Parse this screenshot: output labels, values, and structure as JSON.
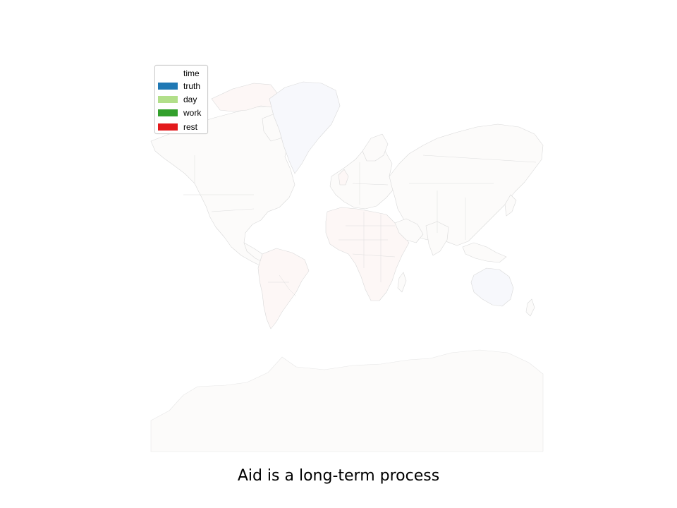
{
  "legend": {
    "title": "time",
    "items": [
      {
        "label": "truth",
        "color": "#1f78b4"
      },
      {
        "label": "day",
        "color": "#b2df8a"
      },
      {
        "label": "work",
        "color": "#33a02c"
      },
      {
        "label": "rest",
        "color": "#e31a1c"
      }
    ]
  },
  "caption": "Aid is a long-term process",
  "colors": {
    "land_fill": "#fcfbfa",
    "country_border": "#d9d9d9",
    "background": "#ffffff"
  }
}
